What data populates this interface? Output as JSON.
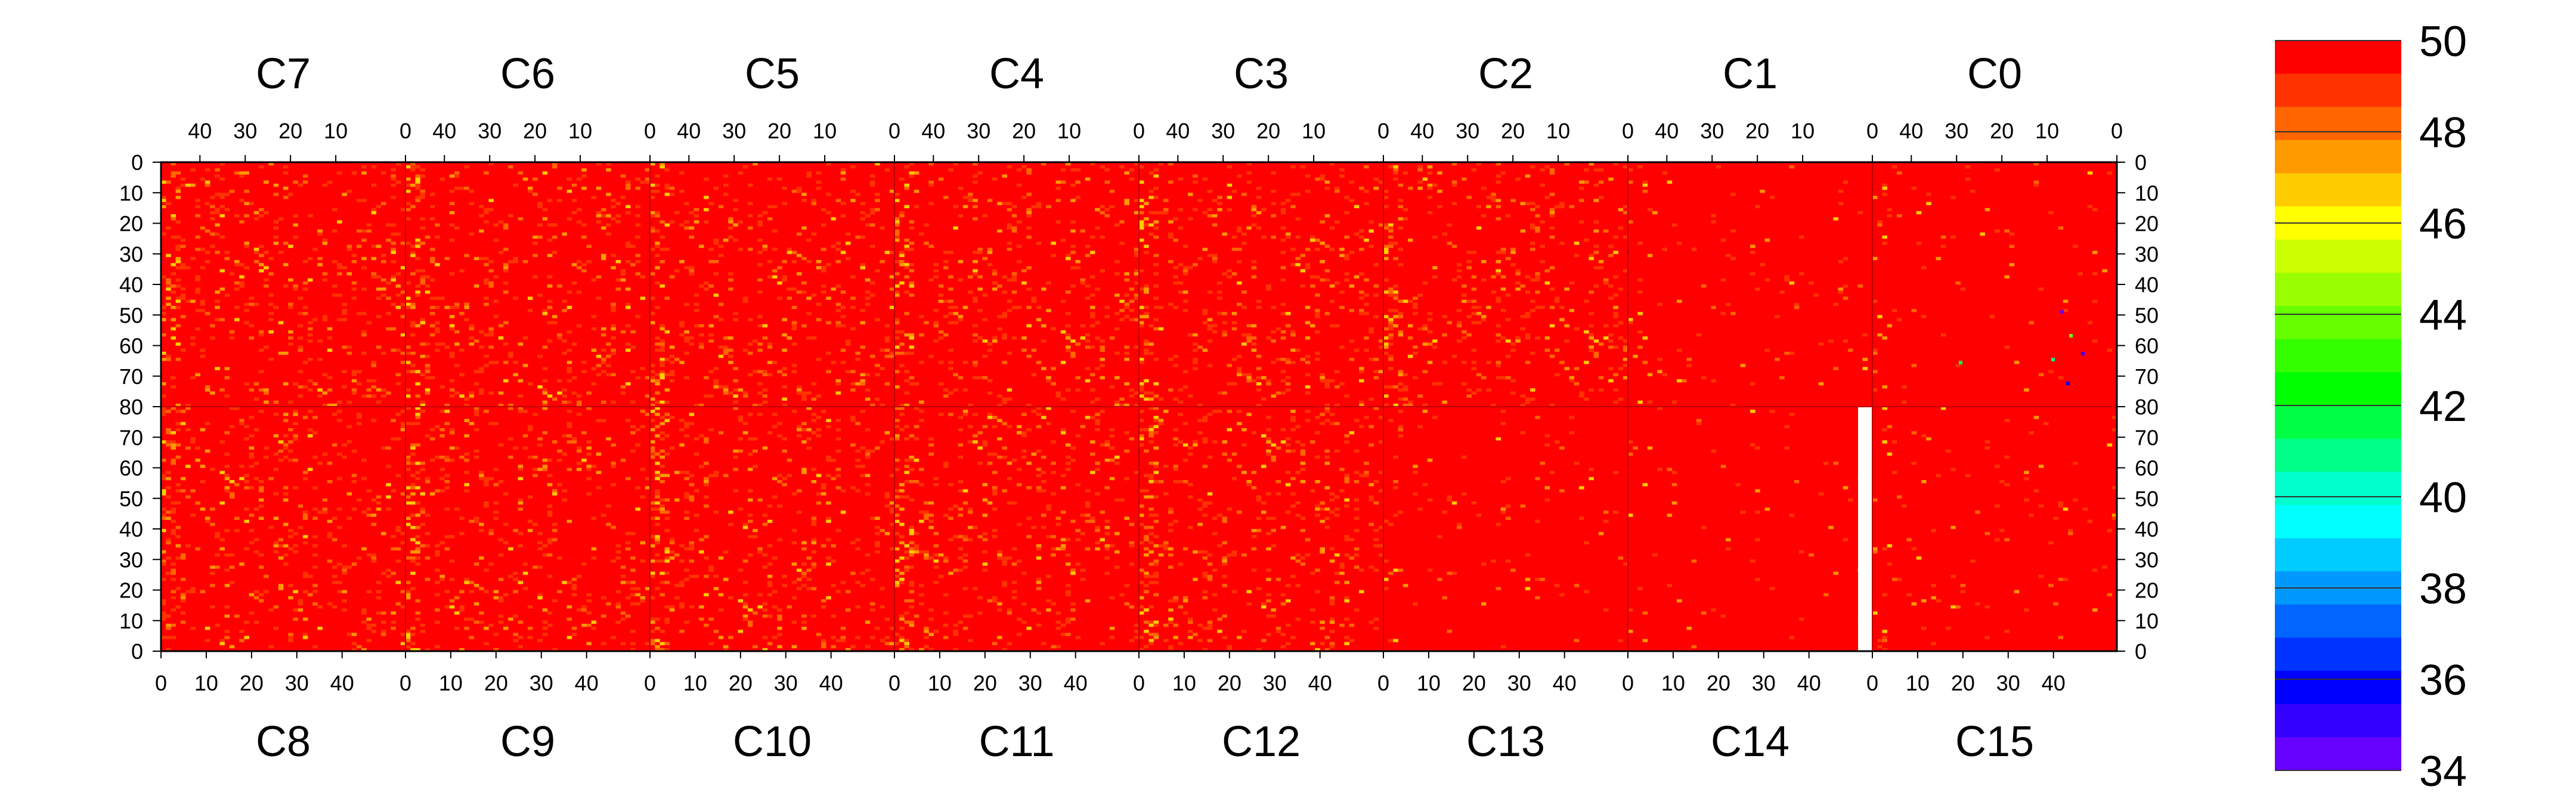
{
  "chart_data": {
    "type": "heatmap",
    "title": "",
    "xlabel": "",
    "ylabel": "",
    "top_channels": [
      "C7",
      "C6",
      "C5",
      "C4",
      "C3",
      "C2",
      "C1",
      "C0"
    ],
    "bottom_channels": [
      "C8",
      "C9",
      "C10",
      "C11",
      "C12",
      "C13",
      "C14",
      "C15"
    ],
    "x_ticks_top": [
      "40",
      "30",
      "20",
      "10",
      "0"
    ],
    "x_ticks_bottom": [
      "0",
      "10",
      "20",
      "30",
      "40"
    ],
    "y_ticks_top_half": [
      "0",
      "10",
      "20",
      "30",
      "40",
      "50",
      "60",
      "70",
      "80"
    ],
    "y_ticks_bottom_half": [
      "70",
      "60",
      "50",
      "40",
      "30",
      "20",
      "10",
      "0"
    ],
    "colorbar_labels": [
      "50",
      "48",
      "46",
      "44",
      "42",
      "40",
      "38",
      "36",
      "34"
    ],
    "colorbar_range": [
      34,
      50
    ],
    "colorbar_colors": [
      "#ff0000",
      "#ff3300",
      "#ff6600",
      "#ff9900",
      "#ffcc00",
      "#ffff00",
      "#ccff00",
      "#99ff00",
      "#66ff00",
      "#33ff00",
      "#00ff00",
      "#00ff44",
      "#00ff88",
      "#00ffcc",
      "#00ffff",
      "#00ccff",
      "#0099ff",
      "#0066ff",
      "#0033ff",
      "#0000ff",
      "#3300ff",
      "#6600ff"
    ],
    "columns_per_channel": 50,
    "rows_per_half": 80,
    "dominant_value": 50,
    "missing_region": "C14 columns 48-50 (white)"
  }
}
